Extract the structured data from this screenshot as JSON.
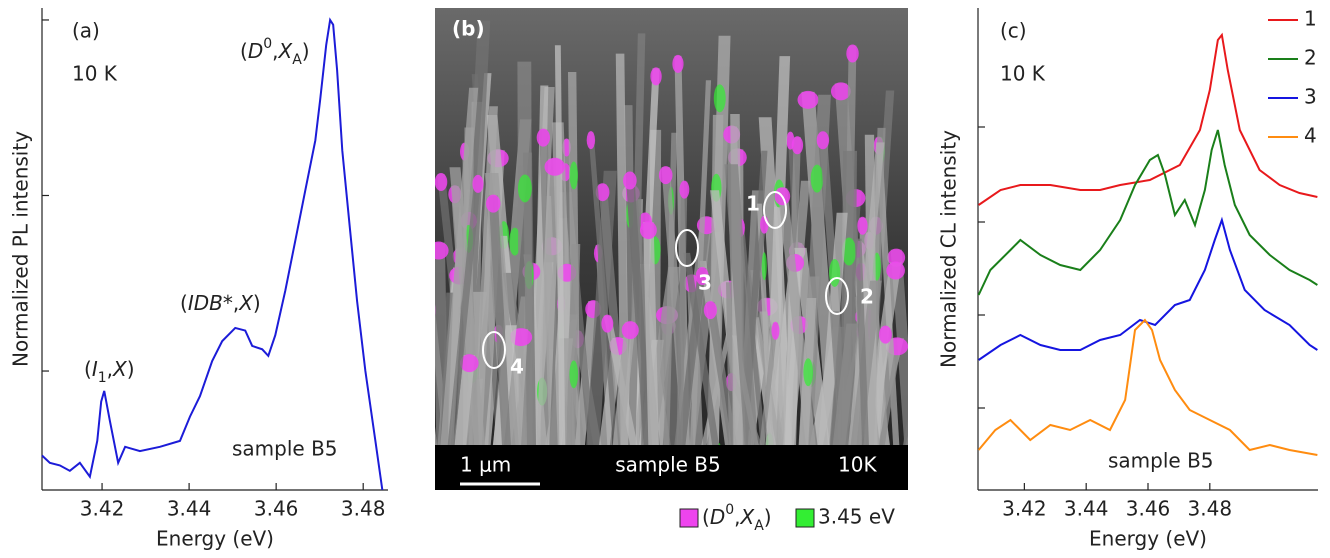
{
  "chart_data": [
    {
      "type": "line",
      "panel_label": "(a)",
      "xlabel": "Energy (eV)",
      "ylabel": "Normalized PL intensity",
      "annotations": [
        {
          "text": "10 K"
        },
        {
          "text": "sample B5"
        },
        {
          "parts": [
            "(",
            "D",
            "0",
            ",",
            "X",
            "A",
            ")"
          ]
        },
        {
          "parts": [
            "(",
            "IDB*",
            ",",
            "X",
            ")"
          ]
        },
        {
          "parts": [
            "(",
            "I",
            "1",
            ",",
            "X",
            ")"
          ]
        }
      ],
      "x": [
        3.4062,
        3.408,
        3.4103,
        3.4126,
        3.4149,
        3.4172,
        3.4189,
        3.4198,
        3.4205,
        3.4218,
        3.4237,
        3.4253,
        3.4287,
        3.4333,
        3.4379,
        3.4402,
        3.4425,
        3.4453,
        3.4476,
        3.4506,
        3.4529,
        3.4545,
        3.4568,
        3.4582,
        3.4598,
        3.4621,
        3.4644,
        3.4667,
        3.469,
        3.4701,
        3.4715,
        3.4724,
        3.4731,
        3.474,
        3.4752,
        3.477,
        3.4786,
        3.4805,
        3.4828,
        3.4844
      ],
      "series": [
        {
          "color": "#1c1cd8",
          "values": [
            0.0033,
            0.003,
            0.0029,
            0.0027,
            0.003,
            0.0025,
            0.004,
            0.0067,
            0.0077,
            0.0052,
            0.003,
            0.0037,
            0.0035,
            0.0037,
            0.004,
            0.0055,
            0.0072,
            0.0114,
            0.0148,
            0.0176,
            0.017,
            0.0139,
            0.0133,
            0.0122,
            0.016,
            0.0287,
            0.0553,
            0.107,
            0.206,
            0.349,
            0.72,
            1.0,
            0.94,
            0.52,
            0.18,
            0.063,
            0.025,
            0.01,
            0.004,
            0.0021
          ]
        }
      ],
      "xlim": [
        3.4062,
        3.4857
      ],
      "xticks": [
        3.42,
        3.44,
        3.46,
        3.48
      ],
      "ylim": [
        0.0021,
        1.17
      ],
      "yticks": [
        0.01,
        0.1,
        1
      ],
      "log_y": true
    },
    {
      "type": "line",
      "panel_label": "(c)",
      "xlabel": "Energy (eV)",
      "ylabel": "Normalized CL intensity",
      "annotations": [
        {
          "text": "10 K"
        },
        {
          "text": "sample B5"
        }
      ],
      "legend": "upper right",
      "series": [
        {
          "name": "1",
          "color": "#e8191c",
          "x": [
            3.4052,
            3.4123,
            3.4187,
            3.4284,
            3.4381,
            3.4445,
            3.451,
            3.4606,
            3.4703,
            3.4768,
            3.48,
            3.4826,
            3.4839,
            3.4858,
            3.4897,
            3.4961,
            3.5026,
            3.509,
            3.5148
          ],
          "values": [
            28.5,
            30,
            30.5,
            30.5,
            30,
            30,
            30.5,
            31,
            32.5,
            36,
            40,
            45,
            45.5,
            42,
            36,
            32,
            30.5,
            29.7,
            29.3
          ]
        },
        {
          "name": "2",
          "color": "#1a7f1a",
          "x": [
            3.4052,
            3.409,
            3.4155,
            3.4187,
            3.4252,
            3.4316,
            3.4381,
            3.4445,
            3.451,
            3.4558,
            3.4606,
            3.4632,
            3.4655,
            3.4687,
            3.4719,
            3.4752,
            3.4784,
            3.4806,
            3.4826,
            3.4848,
            3.4881,
            3.4929,
            3.4994,
            3.5058,
            3.5123,
            3.5148
          ],
          "values": [
            19.5,
            22,
            24,
            25,
            23.5,
            22.5,
            22,
            24,
            27,
            30.5,
            33,
            33.5,
            31.5,
            27.5,
            29,
            26.5,
            30,
            34,
            36,
            32.5,
            28.5,
            25.5,
            23.5,
            22,
            21,
            20.5
          ]
        },
        {
          "name": "3",
          "color": "#1515e0",
          "x": [
            3.4052,
            3.4123,
            3.4187,
            3.4252,
            3.4316,
            3.4381,
            3.4445,
            3.451,
            3.4574,
            3.4623,
            3.4687,
            3.4735,
            3.4784,
            3.4816,
            3.4839,
            3.4865,
            3.4913,
            3.4977,
            3.5058,
            3.5123,
            3.5148
          ],
          "values": [
            13,
            14.5,
            15.5,
            14.5,
            14,
            14,
            15,
            15.5,
            17,
            16.5,
            18.5,
            19,
            22,
            25,
            27,
            24,
            20,
            18,
            16.5,
            14.5,
            14
          ]
        },
        {
          "name": "4",
          "color": "#ff8c10",
          "x": [
            3.4052,
            3.4106,
            3.4155,
            3.4219,
            3.4284,
            3.4348,
            3.4413,
            3.4477,
            3.4526,
            3.4558,
            3.459,
            3.4613,
            3.4639,
            3.4687,
            3.4735,
            3.48,
            3.4865,
            3.4929,
            3.4994,
            3.5058,
            3.5148
          ],
          "values": [
            4,
            6,
            7,
            5,
            6.5,
            6,
            7,
            6,
            9,
            16,
            17,
            16,
            13,
            10,
            8,
            7,
            6,
            4,
            4.5,
            4,
            3.5
          ]
        }
      ],
      "xlim": [
        3.405,
        3.515
      ],
      "xticks": [
        3.42,
        3.44,
        3.46,
        3.48
      ],
      "ylim": [
        0,
        48.2
      ],
      "yticks": [
        8.2,
        17.5,
        26.8,
        36.3
      ]
    }
  ],
  "image_panel": {
    "label": "(b)",
    "scale_bar": "1 μm",
    "sample": "sample B5",
    "temperature": "10K",
    "markers": [
      "1",
      "2",
      "3",
      "4"
    ],
    "legend": [
      {
        "color": "#ee44ee",
        "parts": [
          "(",
          "D",
          "0",
          ",",
          "X",
          "A",
          ")"
        ]
      },
      {
        "color": "#33ee33",
        "text": "3.45 eV"
      }
    ]
  }
}
